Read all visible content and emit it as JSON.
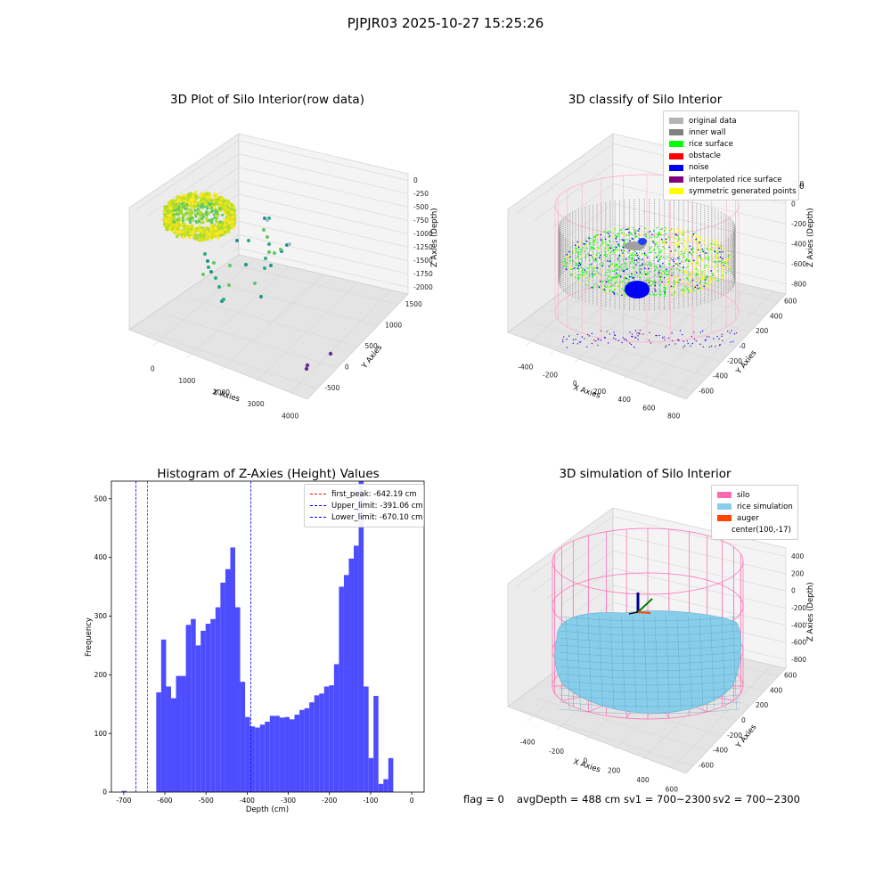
{
  "suptitle": "PJPJR03 2025-10-27 15:25:26",
  "footer": {
    "flag": "flag = 0",
    "avg": "avgDepth = 488 cm",
    "sv1": "sv1 = 700~2300",
    "sv2": "sv2 = 700~2300"
  },
  "chart_data": [
    {
      "type": "scatter",
      "title": "3D Plot of Silo Interior(row data)",
      "xlabel": "X Axies",
      "ylabel": "Y Axies",
      "zlabel": "Z Axies (Depth)",
      "x_ticks": [
        "0",
        "1000",
        "2000",
        "3000",
        "4000"
      ],
      "y_ticks": [
        "-500",
        "0",
        "500",
        "1000",
        "1500"
      ],
      "z_ticks": [
        "0",
        "-250",
        "-500",
        "-750",
        "-1000",
        "-1250",
        "-1500",
        "-1750",
        "-2000"
      ],
      "grid": true,
      "colormap": "viridis"
    },
    {
      "type": "scatter",
      "title": "3D classify of Silo Interior",
      "xlabel": "X Axies",
      "ylabel": "Y Axies",
      "zlabel": "Z Axies (Depth)",
      "x_ticks": [
        "-400",
        "-200",
        "0",
        "200",
        "400",
        "600",
        "800"
      ],
      "y_ticks": [
        "-600",
        "-400",
        "-200",
        "0",
        "200",
        "400",
        "600"
      ],
      "z_ticks": [
        "200",
        "0",
        "-200",
        "-400",
        "-600",
        "-800"
      ],
      "legend_position": "top-right",
      "legend": [
        {
          "label": "original data",
          "color": "#b4b4b4"
        },
        {
          "label": "inner wall",
          "color": "#808080"
        },
        {
          "label": "rice surface",
          "color": "#00ff00"
        },
        {
          "label": "obstacle",
          "color": "#ff0000"
        },
        {
          "label": "noise",
          "color": "#0000ff"
        },
        {
          "label": "interpolated rice surface",
          "color": "#800080"
        },
        {
          "label": "symmetric generated points",
          "color": "#ffff00"
        }
      ],
      "partial_tick": "0"
    },
    {
      "type": "bar",
      "title": "Histogram of Z-Axies (Height) Values",
      "xlabel": "Depth (cm)",
      "ylabel": "Frequency",
      "xlim": [
        -730,
        30
      ],
      "ylim": [
        0,
        530
      ],
      "x_ticks": [
        -700,
        -600,
        -500,
        -400,
        -300,
        -200,
        -100,
        0
      ],
      "y_ticks": [
        0,
        100,
        200,
        300,
        400,
        500
      ],
      "bar_color": "#4d4dff",
      "bin_start": -705,
      "bin_width": 12,
      "values": [
        2,
        0,
        0,
        0,
        0,
        0,
        0,
        170,
        260,
        180,
        160,
        198,
        198,
        285,
        295,
        250,
        275,
        287,
        295,
        315,
        357,
        380,
        417,
        315,
        188,
        128,
        112,
        110,
        115,
        120,
        130,
        130,
        127,
        128,
        124,
        132,
        140,
        143,
        153,
        165,
        168,
        180,
        182,
        218,
        350,
        370,
        398,
        420,
        530,
        180,
        58,
        164,
        14,
        22,
        58
      ],
      "vlines": [
        {
          "label": "first_peak: -642.19 cm",
          "x": -642.19,
          "color": "#ff0000"
        },
        {
          "label": "Upper_limit: -391.06 cm",
          "x": -391.06,
          "color": "#0000ff"
        },
        {
          "label": "Lower_limit: -670.10 cm",
          "x": -670.1,
          "color": "#0000ff"
        }
      ],
      "legend_position": "top-right"
    },
    {
      "type": "scatter",
      "title": "3D simulation of Silo Interior",
      "xlabel": "X Axies",
      "ylabel": "Y Axies",
      "zlabel": "Z Axies (Depth)",
      "x_ticks": [
        "-400",
        "-200",
        "0",
        "200",
        "400",
        "600"
      ],
      "y_ticks": [
        "-600",
        "-400",
        "-200",
        "0",
        "200",
        "400",
        "600"
      ],
      "z_ticks": [
        "400",
        "200",
        "0",
        "-200",
        "-400",
        "-600",
        "-800"
      ],
      "legend_position": "top-right",
      "legend": [
        {
          "label": "silo",
          "color": "#ff69b4"
        },
        {
          "label": "rice simulation",
          "color": "#87ceeb"
        },
        {
          "label": "auger",
          "color": "#ff4500"
        },
        {
          "label": "center(100,-17)",
          "color": ""
        }
      ]
    }
  ]
}
